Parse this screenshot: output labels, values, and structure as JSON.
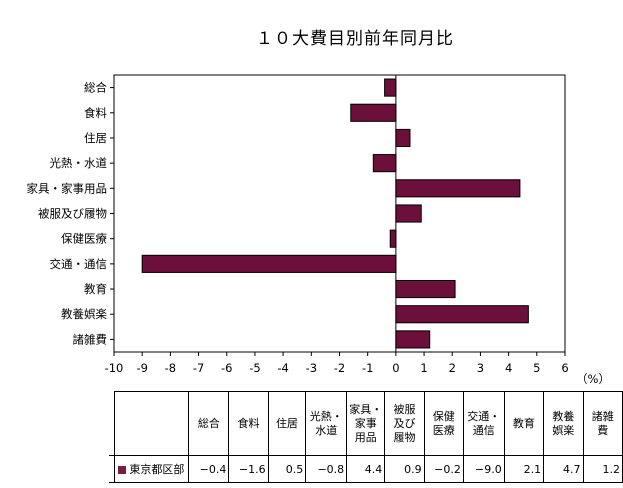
{
  "chart_data": {
    "type": "bar",
    "orientation": "horizontal",
    "title": "１０大費目別前年同月比",
    "unit_label": "（%）",
    "categories": [
      "総合",
      "食料",
      "住居",
      "光熱・水道",
      "家具・家事用品",
      "被服及び履物",
      "保健医療",
      "交通・通信",
      "教育",
      "教養娯楽",
      "諸雑費"
    ],
    "series": [
      {
        "name": "東京都区部",
        "values": [
          -0.4,
          -1.6,
          0.5,
          -0.8,
          4.4,
          0.9,
          -0.2,
          -9.0,
          2.1,
          4.7,
          1.2
        ]
      }
    ],
    "xlim": [
      -10,
      6
    ],
    "xticks": [
      "-10",
      "-9",
      "-8",
      "-7",
      "-6",
      "-5",
      "-4",
      "-3",
      "-2",
      "-1",
      "0",
      "1",
      "2",
      "3",
      "4",
      "5",
      "6"
    ],
    "bar_color": "#6d0f3b",
    "grid": false,
    "legend": "data-table-below"
  },
  "table": {
    "headers": [
      [
        "総合"
      ],
      [
        "食料"
      ],
      [
        "住居"
      ],
      [
        "光熱・",
        "水道"
      ],
      [
        "家具・",
        "家事",
        "用品"
      ],
      [
        "被服",
        "及び",
        "履物"
      ],
      [
        "保健",
        "医療"
      ],
      [
        "交通・",
        "通信"
      ],
      [
        "教育"
      ],
      [
        "教養",
        "娯楽"
      ],
      [
        "諸雑",
        "費"
      ]
    ],
    "row_label": "東京都区部",
    "values": [
      "−0.4",
      "−1.6",
      "0.5",
      "−0.8",
      "4.4",
      "0.9",
      "−0.2",
      "−9.0",
      "2.1",
      "4.7",
      "1.2"
    ]
  }
}
